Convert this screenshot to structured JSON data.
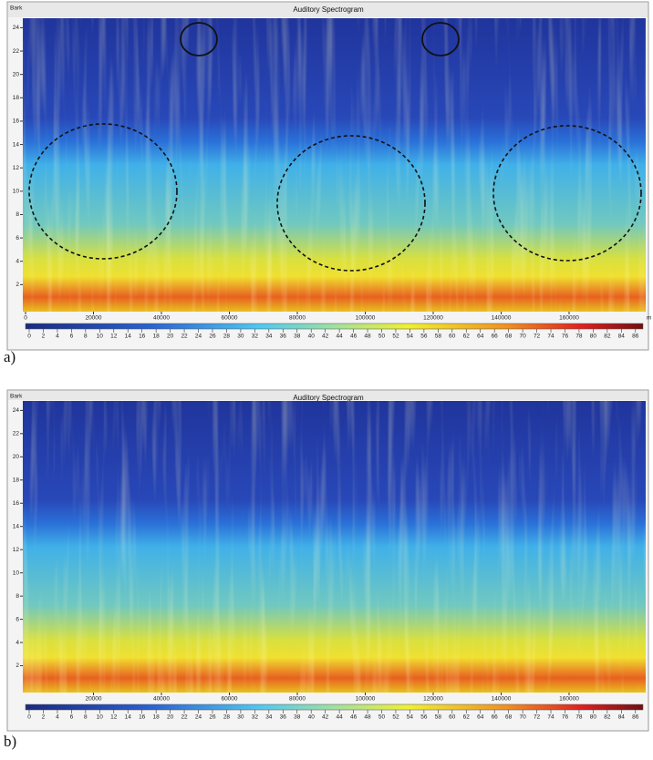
{
  "panels": [
    {
      "label": "a)",
      "title": "Auditory Spectrogram",
      "y_axis_label": "Bark",
      "x_unit": "m",
      "yticks": [
        2,
        4,
        6,
        8,
        10,
        12,
        14,
        16,
        18,
        20,
        22,
        24
      ],
      "xticks": [
        0,
        20000,
        40000,
        60000,
        80000,
        100000,
        120000,
        140000,
        160000
      ],
      "colorbar_ticks": [
        0,
        2,
        4,
        6,
        8,
        10,
        12,
        14,
        16,
        18,
        20,
        22,
        24,
        26,
        28,
        30,
        32,
        34,
        36,
        38,
        40,
        42,
        44,
        46,
        48,
        50,
        52,
        54,
        56,
        58,
        60,
        62,
        64,
        66,
        68,
        70,
        72,
        74,
        76,
        78,
        80,
        82,
        84,
        86
      ]
    },
    {
      "label": "b)",
      "title": "Auditory Spectrogram",
      "y_axis_label": "Bark",
      "yticks": [
        2,
        4,
        6,
        8,
        10,
        12,
        14,
        16,
        18,
        20,
        22,
        24
      ],
      "xticks": [
        20000,
        40000,
        60000,
        80000,
        100000,
        120000,
        140000,
        160000
      ],
      "colorbar_ticks": [
        0,
        2,
        4,
        6,
        8,
        10,
        12,
        14,
        16,
        18,
        20,
        22,
        24,
        26,
        28,
        30,
        32,
        34,
        36,
        38,
        40,
        42,
        44,
        46,
        48,
        50,
        52,
        54,
        56,
        58,
        60,
        62,
        64,
        66,
        68,
        70,
        72,
        74,
        76,
        78,
        80,
        82,
        84,
        86
      ]
    }
  ]
}
